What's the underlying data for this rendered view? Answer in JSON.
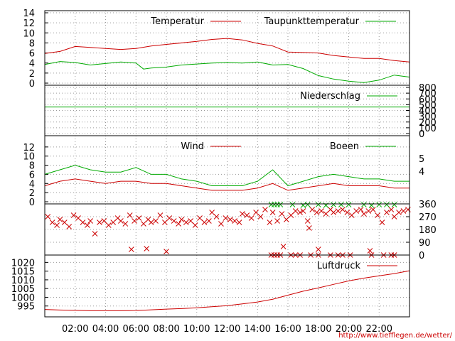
{
  "chart_data": [
    {
      "panel": "temperature",
      "type": "line",
      "ylim": [
        0,
        14
      ],
      "y_ticks": [
        "0",
        "2",
        "4",
        "6",
        "8",
        "10",
        "12",
        "14"
      ],
      "legend": [
        "Temperatur",
        "Taupunkttemperatur"
      ],
      "legend_placement": "top",
      "grid": true,
      "series": [
        {
          "name": "Temperatur",
          "color": "#cc0000",
          "x": [
            0,
            1,
            2,
            3,
            4,
            5,
            6,
            7,
            8,
            9,
            10,
            11,
            12,
            13,
            14,
            15,
            16,
            17,
            18,
            19,
            20,
            21,
            22,
            23,
            24
          ],
          "y": [
            5.9,
            6.3,
            7.3,
            7.1,
            6.9,
            6.7,
            6.9,
            7.4,
            7.7,
            8.0,
            8.3,
            8.7,
            8.9,
            8.6,
            7.9,
            7.4,
            6.2,
            6.1,
            6.0,
            5.5,
            5.2,
            4.9,
            4.9,
            4.5,
            4.2
          ]
        },
        {
          "name": "Taupunkttemperatur",
          "color": "#00aa00",
          "x": [
            0,
            1,
            2,
            3,
            4,
            5,
            6,
            6.5,
            7,
            8,
            9,
            10,
            11,
            12,
            13,
            14,
            15,
            16,
            17,
            18,
            19,
            20,
            21,
            22,
            23,
            24
          ],
          "y": [
            3.7,
            4.3,
            4.1,
            3.6,
            3.9,
            4.2,
            4.0,
            2.8,
            3.0,
            3.2,
            3.6,
            3.8,
            4.0,
            4.1,
            4.0,
            4.2,
            3.6,
            3.7,
            2.9,
            1.5,
            0.8,
            0.4,
            0.1,
            0.6,
            1.6,
            1.2
          ]
        }
      ]
    },
    {
      "panel": "precipitation",
      "type": "line",
      "ylim": [
        0,
        800
      ],
      "y_ticks": [
        "0",
        "100",
        "200",
        "300",
        "400",
        "500",
        "600",
        "700",
        "800"
      ],
      "legend": [
        "Niederschlag"
      ],
      "legend_placement": "top-right",
      "grid": true,
      "series": [
        {
          "name": "Niederschlag",
          "color": "#00aa00",
          "x": [
            0,
            24
          ],
          "y": [
            460,
            460
          ]
        }
      ]
    },
    {
      "panel": "wind",
      "type": "line",
      "ylim": [
        0,
        14
      ],
      "y_ticks": [
        "0",
        "2",
        "4",
        "6",
        "8",
        "10",
        "12"
      ],
      "right_ticks": [
        "4",
        "5"
      ],
      "legend": [
        "Wind",
        "Boeen"
      ],
      "legend_placement": "top",
      "grid": true,
      "series": [
        {
          "name": "Wind",
          "color": "#cc0000",
          "x": [
            0,
            1,
            2,
            3,
            4,
            5,
            6,
            7,
            8,
            9,
            10,
            11,
            12,
            13,
            14,
            15,
            16,
            17,
            18,
            19,
            20,
            21,
            22,
            23,
            24
          ],
          "y": [
            3.5,
            4.5,
            5.0,
            4.5,
            4.0,
            4.5,
            4.5,
            4.0,
            4.0,
            3.5,
            3.0,
            2.5,
            2.5,
            2.5,
            3.0,
            4.0,
            2.5,
            3.0,
            3.5,
            4.0,
            3.5,
            3.5,
            3.5,
            3.0,
            3.0
          ]
        },
        {
          "name": "Boeen",
          "color": "#00aa00",
          "x": [
            0,
            1,
            2,
            3,
            4,
            5,
            6,
            7,
            8,
            9,
            10,
            11,
            12,
            13,
            14,
            15,
            16,
            17,
            18,
            19,
            20,
            21,
            22,
            23,
            24
          ],
          "y": [
            6.0,
            7.0,
            8.0,
            7.0,
            6.5,
            6.5,
            7.5,
            6.0,
            6.0,
            5.0,
            4.5,
            3.5,
            3.5,
            3.5,
            4.5,
            7.0,
            3.5,
            4.5,
            5.5,
            6.0,
            5.5,
            5.0,
            5.0,
            4.5,
            4.5
          ]
        }
      ]
    },
    {
      "panel": "wind_direction",
      "type": "scatter",
      "ylim": [
        0,
        360
      ],
      "y_ticks": [
        "0",
        "90",
        "180",
        "270",
        "360"
      ],
      "grid": true,
      "series": [
        {
          "name": "",
          "color": "#cc0000",
          "x": [
            0.2,
            0.5,
            0.8,
            1.0,
            1.3,
            1.6,
            1.9,
            2.2,
            2.5,
            2.8,
            3.0,
            3.3,
            3.6,
            3.9,
            4.2,
            4.5,
            4.8,
            5.0,
            5.3,
            5.6,
            5.9,
            6.2,
            6.5,
            6.8,
            7.0,
            7.3,
            7.6,
            7.9,
            8.2,
            8.5,
            8.8,
            9.0,
            9.3,
            9.6,
            9.9,
            10.2,
            10.5,
            10.8,
            11.0,
            11.3,
            11.6,
            11.9,
            12.2,
            12.5,
            12.8,
            13.0,
            13.3,
            13.6,
            13.9,
            14.2,
            14.5,
            14.8,
            15.0,
            15.3,
            15.6,
            15.9,
            16.2,
            16.5,
            16.8,
            17.0,
            17.3,
            17.6,
            17.9,
            18.2,
            18.5,
            18.8,
            19.0,
            19.3,
            19.6,
            19.9,
            20.2,
            20.5,
            20.8,
            21.0,
            21.3,
            21.6,
            21.9,
            22.2,
            22.5,
            22.8,
            23.0,
            23.3,
            23.6,
            23.9,
            5.7,
            6.7,
            8.0,
            15.7,
            17.4,
            21.4,
            18.0
          ],
          "y": [
            270,
            230,
            210,
            250,
            230,
            200,
            280,
            260,
            230,
            210,
            240,
            150,
            230,
            240,
            210,
            230,
            260,
            240,
            220,
            280,
            240,
            260,
            220,
            250,
            230,
            240,
            280,
            230,
            260,
            240,
            220,
            250,
            230,
            240,
            210,
            260,
            230,
            240,
            300,
            270,
            220,
            260,
            250,
            240,
            230,
            290,
            280,
            260,
            300,
            270,
            320,
            230,
            300,
            240,
            290,
            250,
            280,
            310,
            300,
            310,
            240,
            320,
            300,
            310,
            290,
            320,
            300,
            310,
            320,
            300,
            280,
            310,
            320,
            290,
            310,
            320,
            280,
            230,
            300,
            320,
            270,
            300,
            310,
            320,
            40,
            45,
            25,
            60,
            190,
            30,
            40
          ]
        },
        {
          "name": "",
          "color": "#00aa00",
          "x": [
            14.9,
            15.1,
            15.3,
            15.5,
            16.3,
            17.0,
            17.3,
            18.0,
            18.5,
            19.0,
            19.5,
            20.0,
            21.0,
            21.5,
            22.0,
            22.5,
            23.0
          ],
          "y": [
            355,
            355,
            355,
            355,
            355,
            350,
            355,
            355,
            350,
            355,
            355,
            355,
            355,
            350,
            355,
            355,
            355
          ]
        },
        {
          "name": "",
          "color": "#cc0000",
          "x": [
            14.9,
            15.1,
            15.3,
            15.5,
            16.2,
            16.5,
            16.8,
            17.5,
            18.0,
            18.8,
            19.3,
            19.6,
            20.1,
            21.5,
            22.3,
            22.8,
            23.0
          ],
          "y": [
            0,
            0,
            0,
            0,
            0,
            0,
            0,
            0,
            0,
            0,
            0,
            0,
            0,
            0,
            0,
            0,
            0
          ]
        }
      ]
    },
    {
      "panel": "pressure",
      "type": "line",
      "ylim": [
        990,
        1023
      ],
      "y_ticks": [
        "995",
        "1000",
        "1005",
        "1010",
        "1015",
        "1020"
      ],
      "legend": [
        "Luftdruck"
      ],
      "legend_placement": "top-right",
      "grid": true,
      "series": [
        {
          "name": "Luftdruck",
          "color": "#cc0000",
          "x": [
            0,
            1,
            2,
            3,
            4,
            5,
            6,
            7,
            8,
            9,
            10,
            11,
            12,
            13,
            14,
            15,
            16,
            17,
            18,
            19,
            20,
            21,
            22,
            23,
            24
          ],
          "y": [
            993.0,
            992.7,
            992.5,
            992.3,
            992.3,
            992.3,
            992.4,
            992.8,
            993.2,
            993.5,
            994.0,
            994.6,
            995.2,
            996.2,
            997.3,
            998.9,
            1001.2,
            1003.5,
            1005.4,
            1007.4,
            1009.4,
            1011.0,
            1012.3,
            1013.6,
            1015.2
          ]
        }
      ]
    }
  ],
  "x_axis": {
    "tick_labels": [
      "02:00",
      "04:00",
      "06:00",
      "08:00",
      "10:00",
      "12:00",
      "14:00",
      "16:00",
      "18:00",
      "20:00",
      "22:00"
    ],
    "tick_values": [
      2,
      4,
      6,
      8,
      10,
      12,
      14,
      16,
      18,
      20,
      22
    ],
    "range": [
      0,
      24
    ]
  },
  "colors": {
    "axis": "#000000",
    "grid": "#9a9a9a",
    "red": "#cc0000",
    "green": "#00aa00"
  },
  "credit": "http://www.tiefflegen.de/wetter/"
}
